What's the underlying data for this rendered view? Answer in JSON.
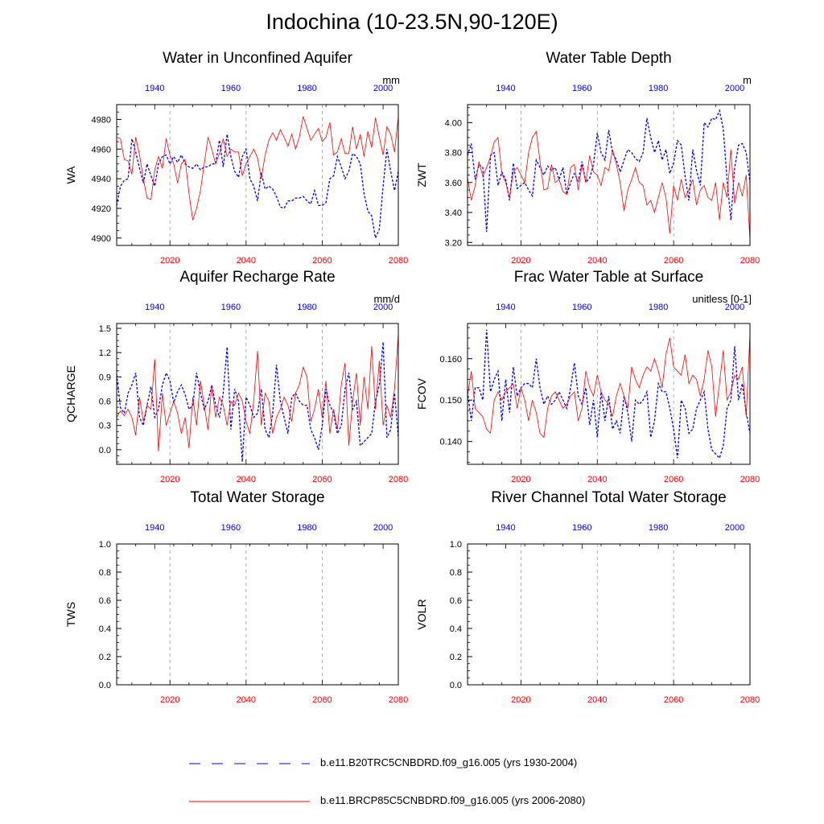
{
  "title": "Indochina (10-23.5N,90-120E)",
  "colors": {
    "historical": "#0000ff",
    "future": "#ff0000"
  },
  "legend": {
    "historical": "b.e11.B20TRC5CNBDRD.f09_g16.005 (yrs 1930-2004)",
    "future": "b.e11.BRCP85C5CNBDRD.f09_g16.005 (yrs 2006-2080)"
  },
  "chart_data": [
    {
      "type": "line",
      "title": "Water in Unconfined Aquifer",
      "units": "mm",
      "ylabel": "WA",
      "ylim": [
        4895,
        4990
      ],
      "yticks": [
        4900,
        4920,
        4940,
        4960,
        4980
      ],
      "bottom_axis": {
        "range": [
          2006,
          2080
        ],
        "ticks": [
          2020,
          2040,
          2060,
          2080
        ]
      },
      "top_axis": {
        "range": [
          1930,
          2004
        ],
        "ticks": [
          1940,
          1960,
          1980,
          2000
        ]
      },
      "series": [
        {
          "name": "b.e11.B20TRC5CNBDRD.f09_g16.005 (yrs 1930-2004)",
          "x_start": 1930,
          "values": [
            4922,
            4935,
            4939,
            4940,
            4967,
            4958,
            4947,
            4937,
            4950,
            4942,
            4935,
            4950,
            4955,
            4956,
            4950,
            4955,
            4951,
            4956,
            4950,
            4948,
            4947,
            4950,
            4946,
            4948,
            4948,
            4950,
            4950,
            4966,
            4948,
            4970,
            4955,
            4945,
            4941,
            4955,
            4960,
            4940,
            4935,
            4925,
            4944,
            4933,
            4935,
            4933,
            4928,
            4921,
            4920,
            4925,
            4925,
            4927,
            4927,
            4928,
            4925,
            4923,
            4932,
            4922,
            4922,
            4924,
            4940,
            4942,
            4955,
            4948,
            4940,
            4945,
            4957,
            4955,
            4950,
            4930,
            4918,
            4915,
            4900,
            4906,
            4935,
            4960,
            4945,
            4932,
            4945,
            4960
          ]
        },
        {
          "name": "b.e11.BRCP85C5CNBDRD.f09_g16.005 (yrs 2006-2080)",
          "x_start": 2006,
          "values": [
            4968,
            4967,
            4953,
            4952,
            4943,
            4968,
            4956,
            4940,
            4927,
            4926,
            4946,
            4955,
            4947,
            4967,
            4956,
            4950,
            4937,
            4950,
            4953,
            4930,
            4912,
            4920,
            4932,
            4950,
            4968,
            4960,
            4950,
            4957,
            4967,
            4955,
            4960,
            4958,
            4958,
            4942,
            4950,
            4955,
            4960,
            4954,
            4940,
            4956,
            4966,
            4971,
            4966,
            4973,
            4968,
            4962,
            4970,
            4960,
            4968,
            4982,
            4974,
            4966,
            4970,
            4974,
            4965,
            4968,
            4978,
            4956,
            4958,
            4967,
            4957,
            4957,
            4975,
            4960,
            4970,
            4955,
            4972,
            4961,
            4981,
            4968,
            4956,
            4975,
            4970,
            4958,
            4982
          ]
        }
      ]
    },
    {
      "type": "line",
      "title": "Water Table Depth",
      "units": "m",
      "ylabel": "ZWT",
      "ylim": [
        3.18,
        4.12
      ],
      "yticks": [
        3.2,
        3.4,
        3.6,
        3.8,
        4.0
      ],
      "ytick_labels": [
        "3.20",
        "3.40",
        "3.60",
        "3.80",
        "4.00"
      ],
      "bottom_axis": {
        "range": [
          2006,
          2080
        ],
        "ticks": [
          2020,
          2040,
          2060,
          2080
        ]
      },
      "top_axis": {
        "range": [
          1930,
          2004
        ],
        "ticks": [
          1940,
          1960,
          1980,
          2000
        ]
      },
      "series": [
        {
          "name": "b.e11.B20TRC5CNBDRD.f09_g16.005 (yrs 1930-2004)",
          "x_start": 1930,
          "values": [
            3.78,
            3.86,
            3.62,
            3.72,
            3.7,
            3.27,
            3.78,
            3.8,
            3.58,
            3.67,
            3.62,
            3.48,
            3.73,
            3.56,
            3.58,
            3.6,
            3.55,
            3.51,
            3.75,
            3.7,
            3.65,
            3.71,
            3.68,
            3.7,
            3.62,
            3.7,
            3.52,
            3.6,
            3.66,
            3.61,
            3.74,
            3.6,
            3.63,
            3.72,
            3.93,
            3.8,
            3.75,
            3.95,
            3.8,
            3.75,
            3.67,
            3.75,
            3.82,
            3.8,
            3.76,
            3.74,
            3.8,
            4.03,
            3.9,
            3.8,
            3.88,
            3.75,
            3.82,
            3.66,
            3.73,
            3.88,
            3.85,
            3.64,
            3.48,
            3.82,
            3.68,
            3.58,
            4.0,
            3.97,
            4.03,
            4.02,
            4.08,
            3.96,
            3.62,
            3.35,
            3.7,
            3.85,
            3.86,
            3.8,
            3.6
          ]
        },
        {
          "name": "b.e11.BRCP85C5CNBDRD.f09_g16.005 (yrs 2006-2080)",
          "x_start": 2006,
          "values": [
            3.63,
            3.48,
            3.58,
            3.74,
            3.64,
            3.7,
            3.77,
            3.87,
            3.9,
            3.66,
            3.6,
            3.5,
            3.67,
            3.7,
            3.65,
            3.6,
            3.8,
            3.9,
            3.94,
            3.74,
            3.55,
            3.56,
            3.72,
            3.6,
            3.62,
            3.54,
            3.52,
            3.7,
            3.72,
            3.55,
            3.72,
            3.6,
            3.78,
            3.67,
            3.65,
            3.58,
            3.7,
            3.68,
            3.82,
            3.72,
            3.6,
            3.41,
            3.55,
            3.62,
            3.7,
            3.6,
            3.58,
            3.45,
            3.48,
            3.4,
            3.5,
            3.6,
            3.5,
            3.26,
            3.58,
            3.48,
            3.62,
            3.5,
            3.55,
            3.62,
            3.45,
            3.55,
            3.58,
            3.5,
            3.48,
            3.6,
            3.35,
            3.6,
            3.5,
            3.82,
            3.46,
            3.6,
            3.51,
            3.65,
            3.22
          ]
        }
      ]
    },
    {
      "type": "line",
      "title": "Aquifer Recharge Rate",
      "units": "mm/d",
      "ylabel": "QCHARGE",
      "ylim": [
        -0.18,
        1.56
      ],
      "yticks": [
        0.0,
        0.3,
        0.6,
        0.9,
        1.2,
        1.5
      ],
      "ytick_labels": [
        "0.0",
        "0.3",
        "0.6",
        "0.9",
        "1.2",
        "1.5"
      ],
      "bottom_axis": {
        "range": [
          2006,
          2080
        ],
        "ticks": [
          2020,
          2040,
          2060,
          2080
        ]
      },
      "top_axis": {
        "range": [
          1930,
          2004
        ],
        "ticks": [
          1940,
          1960,
          1980,
          2000
        ]
      },
      "series": [
        {
          "name": "b.e11.B20TRC5CNBDRD.f09_g16.005 (yrs 1930-2004)",
          "x_start": 1930,
          "values": [
            0.93,
            0.52,
            0.45,
            0.7,
            0.8,
            0.95,
            0.4,
            0.3,
            0.55,
            0.78,
            0.4,
            0.5,
            0.8,
            0.95,
            0.85,
            0.58,
            0.72,
            0.8,
            0.68,
            0.5,
            0.55,
            0.95,
            0.7,
            0.5,
            0.6,
            0.8,
            0.55,
            0.4,
            0.7,
            1.27,
            0.25,
            0.75,
            0.6,
            -0.15,
            0.65,
            0.55,
            0.4,
            0.45,
            0.75,
            0.25,
            0.15,
            0.45,
            1.05,
            0.6,
            0.4,
            0.2,
            0.65,
            0.7,
            0.6,
            0.55,
            0.55,
            0.25,
            0.15,
            0.0,
            0.3,
            0.75,
            0.55,
            0.45,
            0.2,
            0.3,
            0.75,
            0.95,
            0.5,
            0.6,
            0.05,
            0.1,
            0.15,
            0.2,
            0.6,
            0.8,
            1.33,
            0.15,
            0.25,
            0.7,
            0.15
          ]
        },
        {
          "name": "b.e11.BRCP85C5CNBDRD.f09_g16.005 (yrs 2006-2080)",
          "x_start": 2006,
          "values": [
            0.4,
            0.48,
            0.42,
            0.5,
            0.4,
            0.18,
            0.65,
            0.35,
            0.55,
            0.5,
            1.12,
            -0.02,
            0.7,
            0.3,
            0.45,
            0.6,
            0.45,
            0.2,
            0.4,
            0.02,
            0.65,
            0.3,
            0.85,
            0.55,
            0.25,
            0.8,
            0.4,
            0.65,
            0.55,
            0.3,
            0.6,
            0.55,
            0.7,
            0.6,
            0.35,
            0.2,
            0.6,
            1.22,
            0.3,
            0.7,
            0.6,
            0.2,
            0.4,
            0.5,
            0.65,
            0.55,
            0.35,
            0.7,
            0.8,
            1.02,
            0.9,
            0.35,
            0.5,
            0.75,
            0.4,
            0.85,
            0.2,
            0.5,
            0.25,
            0.8,
            1.07,
            0.05,
            0.6,
            0.95,
            0.3,
            0.9,
            0.5,
            1.28,
            0.5,
            1.1,
            0.3,
            0.55,
            0.4,
            0.75,
            1.43
          ]
        }
      ]
    },
    {
      "type": "line",
      "title": "Frac Water Table at Surface",
      "units": "unitless [0-1]",
      "ylabel": "FCOV",
      "ylim": [
        0.1345,
        0.1685
      ],
      "yticks": [
        0.14,
        0.15,
        0.16
      ],
      "ytick_labels": [
        "0.140",
        "0.150",
        "0.160"
      ],
      "bottom_axis": {
        "range": [
          2006,
          2080
        ],
        "ticks": [
          2020,
          2040,
          2060,
          2080
        ]
      },
      "top_axis": {
        "range": [
          1930,
          2004
        ],
        "ticks": [
          1940,
          1960,
          1980,
          2000
        ]
      },
      "series": [
        {
          "name": "b.e11.B20TRC5CNBDRD.f09_g16.005 (yrs 1930-2004)",
          "x_start": 1930,
          "values": [
            0.152,
            0.145,
            0.153,
            0.153,
            0.15,
            0.167,
            0.152,
            0.155,
            0.157,
            0.145,
            0.155,
            0.147,
            0.158,
            0.151,
            0.153,
            0.154,
            0.154,
            0.153,
            0.16,
            0.153,
            0.149,
            0.151,
            0.149,
            0.15,
            0.152,
            0.15,
            0.148,
            0.153,
            0.159,
            0.151,
            0.149,
            0.153,
            0.144,
            0.15,
            0.141,
            0.152,
            0.145,
            0.151,
            0.143,
            0.145,
            0.142,
            0.151,
            0.147,
            0.14,
            0.15,
            0.149,
            0.15,
            0.152,
            0.141,
            0.145,
            0.154,
            0.152,
            0.152,
            0.148,
            0.143,
            0.136,
            0.15,
            0.148,
            0.142,
            0.143,
            0.148,
            0.15,
            0.152,
            0.143,
            0.138,
            0.137,
            0.136,
            0.139,
            0.148,
            0.15,
            0.163,
            0.15,
            0.154,
            0.147,
            0.142
          ]
        },
        {
          "name": "b.e11.BRCP85C5CNBDRD.f09_g16.005 (yrs 2006-2080)",
          "x_start": 2006,
          "values": [
            0.151,
            0.157,
            0.148,
            0.147,
            0.146,
            0.143,
            0.142,
            0.15,
            0.152,
            0.15,
            0.152,
            0.153,
            0.154,
            0.148,
            0.153,
            0.15,
            0.145,
            0.15,
            0.147,
            0.142,
            0.141,
            0.148,
            0.151,
            0.152,
            0.15,
            0.148,
            0.149,
            0.151,
            0.152,
            0.145,
            0.148,
            0.157,
            0.153,
            0.151,
            0.156,
            0.152,
            0.15,
            0.149,
            0.146,
            0.151,
            0.154,
            0.151,
            0.148,
            0.158,
            0.155,
            0.153,
            0.156,
            0.158,
            0.157,
            0.16,
            0.157,
            0.153,
            0.161,
            0.165,
            0.158,
            0.157,
            0.156,
            0.161,
            0.154,
            0.156,
            0.155,
            0.151,
            0.155,
            0.162,
            0.158,
            0.146,
            0.154,
            0.162,
            0.15,
            0.152,
            0.156,
            0.155,
            0.158,
            0.146,
            0.166
          ]
        }
      ]
    },
    {
      "type": "line",
      "title": "Total Water Storage",
      "units": "",
      "ylabel": "TWS",
      "ylim": [
        0,
        1
      ],
      "yticks": [
        0.0,
        0.2,
        0.4,
        0.6,
        0.8,
        1.0
      ],
      "ytick_labels": [
        "0.0",
        "0.2",
        "0.4",
        "0.6",
        "0.8",
        "1.0"
      ],
      "bottom_axis": {
        "range": [
          2006,
          2080
        ],
        "ticks": [
          2020,
          2040,
          2060,
          2080
        ]
      },
      "top_axis": {
        "range": [
          1930,
          2004
        ],
        "ticks": [
          1940,
          1960,
          1980,
          2000
        ]
      },
      "series": []
    },
    {
      "type": "line",
      "title": "River Channel Total Water Storage",
      "units": "",
      "ylabel": "VOLR",
      "ylim": [
        0,
        1
      ],
      "yticks": [
        0.0,
        0.2,
        0.4,
        0.6,
        0.8,
        1.0
      ],
      "ytick_labels": [
        "0.0",
        "0.2",
        "0.4",
        "0.6",
        "0.8",
        "1.0"
      ],
      "bottom_axis": {
        "range": [
          2006,
          2080
        ],
        "ticks": [
          2020,
          2040,
          2060,
          2080
        ]
      },
      "top_axis": {
        "range": [
          1930,
          2004
        ],
        "ticks": [
          1940,
          1960,
          1980,
          2000
        ]
      },
      "series": []
    }
  ]
}
